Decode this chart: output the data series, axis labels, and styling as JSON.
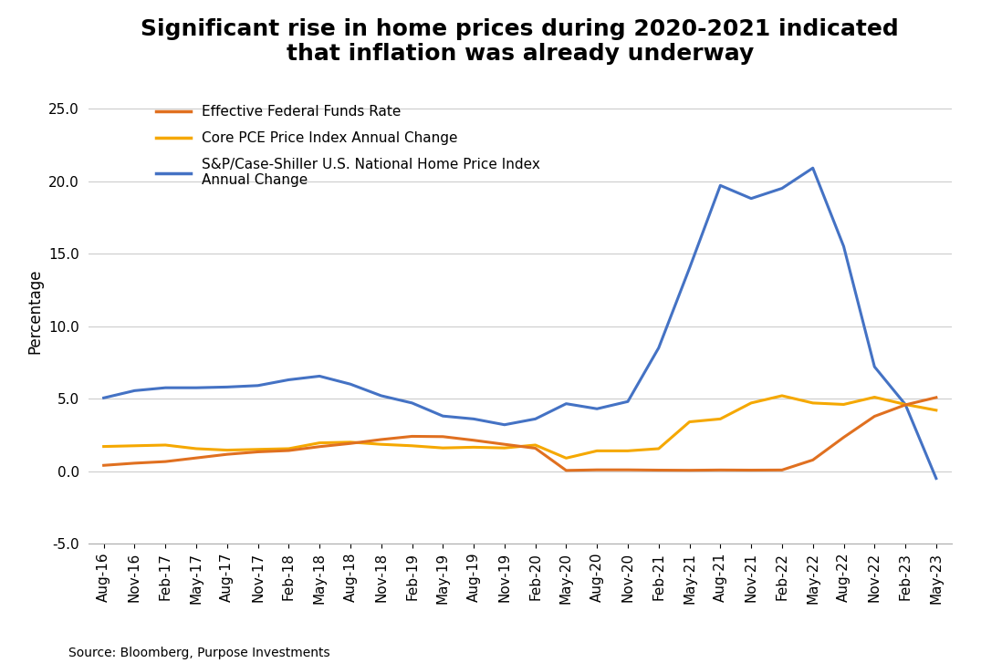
{
  "title": "Significant rise in home prices during 2020-2021 indicated\nthat inflation was already underway",
  "ylabel": "Percentage",
  "source": "Source: Bloomberg, Purpose Investments",
  "ylim": [
    -5.0,
    27.0
  ],
  "yticks": [
    -5.0,
    0.0,
    5.0,
    10.0,
    15.0,
    20.0,
    25.0
  ],
  "background_color": "#ffffff",
  "title_fontsize": 18,
  "label_fontsize": 12,
  "tick_fontsize": 11,
  "x_labels": [
    "Aug-16",
    "Nov-16",
    "Feb-17",
    "May-17",
    "Aug-17",
    "Nov-17",
    "Feb-18",
    "May-18",
    "Aug-18",
    "Nov-18",
    "Feb-19",
    "May-19",
    "Aug-19",
    "Nov-19",
    "Feb-20",
    "May-20",
    "Aug-20",
    "Nov-20",
    "Feb-21",
    "May-21",
    "Aug-21",
    "Nov-21",
    "Feb-22",
    "May-22",
    "Aug-22",
    "Nov-22",
    "Feb-23",
    "May-23"
  ],
  "effr_color": "#E07020",
  "pce_color": "#F5A800",
  "hpi_color": "#4472C4",
  "effr_label": "Effective Federal Funds Rate",
  "pce_label": "Core PCE Price Index Annual Change",
  "hpi_label": "S&P/Case-Shiller U.S. National Home Price Index\nAnnual Change",
  "effr_values": [
    0.4,
    0.55,
    0.66,
    0.91,
    1.16,
    1.33,
    1.42,
    1.69,
    1.91,
    2.18,
    2.4,
    2.38,
    2.13,
    1.85,
    1.58,
    0.05,
    0.09,
    0.09,
    0.07,
    0.06,
    0.08,
    0.07,
    0.08,
    0.77,
    2.33,
    3.78,
    4.57,
    5.08
  ],
  "pce_values": [
    1.7,
    1.75,
    1.8,
    1.55,
    1.45,
    1.5,
    1.55,
    1.95,
    2.0,
    1.85,
    1.75,
    1.6,
    1.65,
    1.6,
    1.8,
    0.9,
    1.4,
    1.4,
    1.55,
    3.4,
    3.6,
    4.7,
    5.2,
    4.7,
    4.6,
    5.1,
    4.6,
    4.2
  ],
  "hpi_values": [
    5.05,
    5.55,
    5.75,
    5.75,
    5.8,
    5.9,
    6.3,
    6.55,
    6.0,
    5.2,
    4.7,
    3.8,
    3.6,
    3.2,
    3.6,
    4.65,
    4.3,
    4.8,
    8.5,
    14.0,
    19.7,
    18.8,
    19.5,
    20.9,
    15.5,
    7.2,
    4.6,
    -0.5
  ],
  "grid_color": "#cccccc",
  "spine_color": "#aaaaaa",
  "legend_fontsize": 11,
  "legend_labelspacing": 0.9,
  "legend_handlelength": 2.5
}
